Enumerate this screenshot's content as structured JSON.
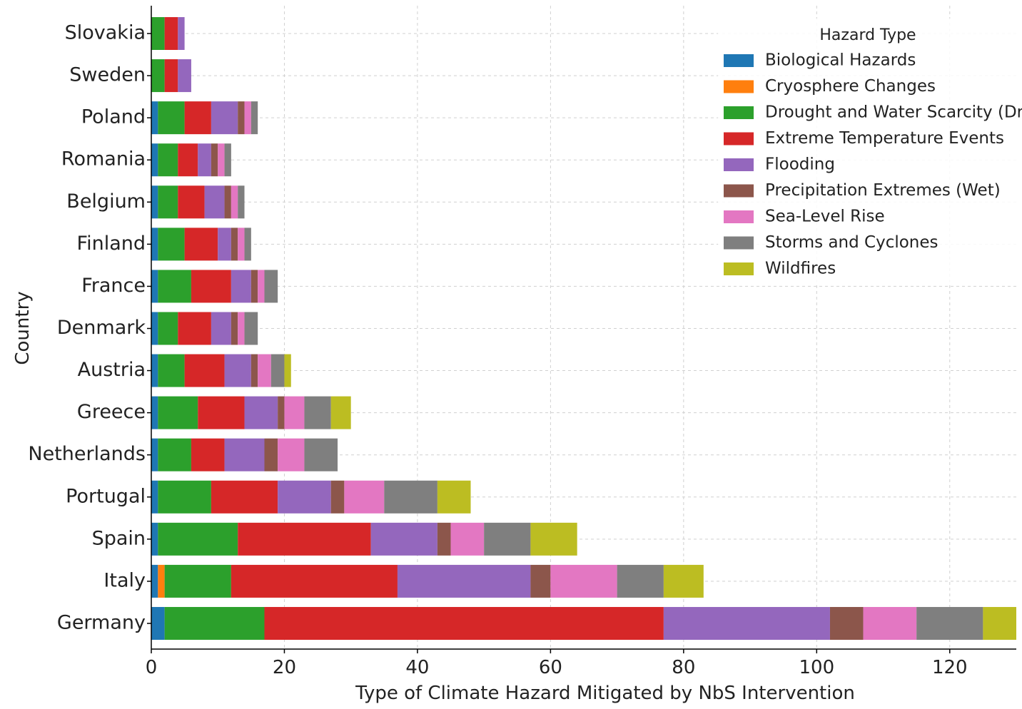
{
  "chart_data": {
    "type": "bar",
    "orientation": "horizontal",
    "stacked": true,
    "title": "",
    "xlabel": "Type of Climate Hazard Mitigated by NbS Intervention",
    "ylabel": "Country",
    "xlim": [
      0,
      130
    ],
    "xticks": [
      0,
      20,
      40,
      60,
      80,
      100,
      120
    ],
    "grid": true,
    "legend": {
      "title": "Hazard Type",
      "placement": "top-right"
    },
    "categories": [
      "Slovakia",
      "Sweden",
      "Poland",
      "Romania",
      "Belgium",
      "Finland",
      "France",
      "Denmark",
      "Austria",
      "Greece",
      "Netherlands",
      "Portugal",
      "Spain",
      "Italy",
      "Germany"
    ],
    "series": [
      {
        "name": "Biological Hazards",
        "color": "#1f77b4",
        "values": [
          0,
          0,
          1,
          1,
          1,
          1,
          1,
          1,
          1,
          1,
          1,
          1,
          1,
          1,
          2
        ]
      },
      {
        "name": "Cryosphere Changes",
        "color": "#ff7f0e",
        "values": [
          0,
          0,
          0,
          0,
          0,
          0,
          0,
          0,
          0,
          0,
          0,
          0,
          0,
          1,
          0
        ]
      },
      {
        "name": "Drought and Water Scarcity (Dry)",
        "color": "#2ca02c",
        "values": [
          2,
          2,
          4,
          3,
          3,
          4,
          5,
          3,
          4,
          6,
          5,
          8,
          12,
          10,
          15
        ]
      },
      {
        "name": "Extreme Temperature Events",
        "color": "#d62728",
        "values": [
          2,
          2,
          4,
          3,
          4,
          5,
          6,
          5,
          6,
          7,
          5,
          10,
          20,
          25,
          60
        ]
      },
      {
        "name": "Flooding",
        "color": "#9467bd",
        "values": [
          1,
          2,
          4,
          2,
          3,
          2,
          3,
          3,
          4,
          5,
          6,
          8,
          10,
          20,
          25
        ]
      },
      {
        "name": "Precipitation Extremes (Wet)",
        "color": "#8c564b",
        "values": [
          0,
          0,
          1,
          1,
          1,
          1,
          1,
          1,
          1,
          1,
          2,
          2,
          2,
          3,
          5
        ]
      },
      {
        "name": "Sea-Level Rise",
        "color": "#e377c2",
        "values": [
          0,
          0,
          1,
          1,
          1,
          1,
          1,
          1,
          2,
          3,
          4,
          6,
          5,
          10,
          8
        ]
      },
      {
        "name": "Storms and Cyclones",
        "color": "#7f7f7f",
        "values": [
          0,
          0,
          1,
          1,
          1,
          1,
          2,
          2,
          2,
          4,
          5,
          8,
          7,
          7,
          10
        ]
      },
      {
        "name": "Wildfires",
        "color": "#bcbd22",
        "values": [
          0,
          0,
          0,
          0,
          0,
          0,
          0,
          0,
          1,
          3,
          0,
          5,
          7,
          6,
          5
        ]
      }
    ]
  }
}
